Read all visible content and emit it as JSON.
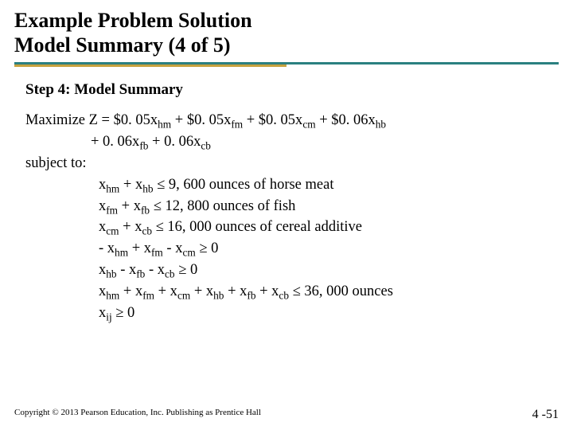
{
  "title_line1": "Example Problem Solution",
  "title_line2": "Model Summary (4 of 5)",
  "rule": {
    "teal_color": "#2a8080",
    "gold_color": "#c7a23f"
  },
  "step_heading": "Step 4: Model Summary",
  "objective": {
    "line1_pre": "Maximize Z = $0. 05x",
    "l1_s1": "hm",
    "l1_m2": " + $0. 05x",
    "l1_s2": "fm",
    "l1_m3": " + $0. 05x",
    "l1_s3": "cm",
    "l1_m4": " + $0. 06x",
    "l1_s4": "hb",
    "line2_pre": "+ 0. 06x",
    "l2_s1": "fb",
    "l2_m2": " + 0. 06x",
    "l2_s2": "cb"
  },
  "subject_to": "subject to:",
  "constraints": {
    "c1": {
      "t1": "x",
      "s1": "hm",
      "t2": " + x",
      "s2": "hb",
      "t3": " ≤ 9, 600 ounces of horse meat"
    },
    "c2": {
      "t1": "x",
      "s1": "fm",
      "t2": " + x",
      "s2": "fb",
      "t3": " ≤ 12, 800 ounces of fish"
    },
    "c3": {
      "t1": "x",
      "s1": "cm",
      "t2": " + x",
      "s2": "cb",
      "t3": " ≤ 16, 000 ounces of cereal additive"
    },
    "c4": {
      "t1": "- x",
      "s1": "hm",
      "t2": " + x",
      "s2": "fm",
      "t3": " - x",
      "s3": "cm",
      "t4": " ≥ 0"
    },
    "c5": {
      "t1": "x",
      "s1": "hb",
      "t2": " - x",
      "s2": "fb",
      "t3": " - x",
      "s3": "cb",
      "t4": " ≥ 0"
    },
    "c6": {
      "t1": "x",
      "s1": "hm",
      "t2": " + x",
      "s2": "fm",
      "t3": " + x",
      "s3": "cm",
      "t4": " + x",
      "s4": "hb",
      "t5": " + x",
      "s5": "fb",
      "t6": " + x",
      "s6": "cb",
      "t7": " ≤ 36, 000 ounces"
    },
    "c7": {
      "t1": "x",
      "s1": "ij",
      "t2": " ≥ 0"
    }
  },
  "footer": {
    "copyright": "Copyright © 2013 Pearson Education, Inc. Publishing as Prentice Hall",
    "page": "4 -51"
  }
}
